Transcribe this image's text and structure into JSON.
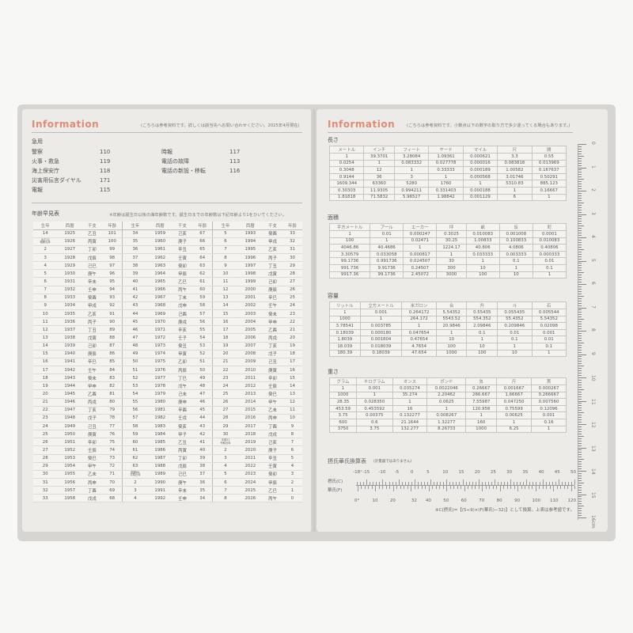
{
  "left": {
    "title": "Information",
    "note": "(こちらは参考資料です。詳しくは該当先へお問い合わせください。2025年4月現在)",
    "emergency": {
      "heading": "急用",
      "col1": [
        [
          "警察",
          "110"
        ],
        [
          "火事・救急",
          "119"
        ],
        [
          "海上保安庁",
          "118"
        ],
        [
          "災害用伝言ダイヤル",
          "171"
        ],
        [
          "電報",
          "115"
        ]
      ],
      "col2": [
        [
          "時報",
          "117"
        ],
        [
          "電話の故障",
          "113"
        ],
        [
          "電話の新設・移転",
          "116"
        ]
      ]
    },
    "age_table": {
      "heading": "年齢早見表",
      "note": "※年齢は誕生日以後の満年齢数です。誕生日までの年齢数は下記年齢より1をひいてください。",
      "headers": [
        "生年",
        "西暦",
        "干支",
        "年齢"
      ],
      "groups": [
        [
          [
            "14",
            "1925",
            "乙丑",
            "101"
          ],
          [
            "大正15/昭和元年",
            "1926",
            "丙寅",
            "100"
          ],
          [
            "2",
            "1927",
            "丁卯",
            "99"
          ],
          [
            "3",
            "1928",
            "戊辰",
            "98"
          ],
          [
            "4",
            "1929",
            "己巳",
            "97"
          ],
          [
            "5",
            "1930",
            "庚午",
            "96"
          ],
          [
            "6",
            "1931",
            "辛未",
            "95"
          ],
          [
            "7",
            "1932",
            "壬申",
            "94"
          ],
          [
            "8",
            "1933",
            "癸酉",
            "93"
          ],
          [
            "9",
            "1934",
            "甲戌",
            "92"
          ],
          [
            "10",
            "1935",
            "乙亥",
            "91"
          ],
          [
            "11",
            "1936",
            "丙子",
            "90"
          ],
          [
            "12",
            "1937",
            "丁丑",
            "89"
          ],
          [
            "13",
            "1938",
            "戊寅",
            "88"
          ],
          [
            "14",
            "1939",
            "己卯",
            "87"
          ],
          [
            "15",
            "1940",
            "庚辰",
            "86"
          ],
          [
            "16",
            "1941",
            "辛巳",
            "85"
          ],
          [
            "17",
            "1942",
            "壬午",
            "84"
          ],
          [
            "18",
            "1943",
            "癸未",
            "83"
          ],
          [
            "19",
            "1944",
            "甲申",
            "82"
          ],
          [
            "20",
            "1945",
            "乙酉",
            "81"
          ],
          [
            "21",
            "1946",
            "丙戌",
            "80"
          ],
          [
            "22",
            "1947",
            "丁亥",
            "79"
          ],
          [
            "23",
            "1948",
            "戊子",
            "78"
          ],
          [
            "24",
            "1949",
            "己丑",
            "77"
          ],
          [
            "25",
            "1950",
            "庚寅",
            "76"
          ],
          [
            "26",
            "1951",
            "辛卯",
            "75"
          ],
          [
            "27",
            "1952",
            "壬辰",
            "74"
          ],
          [
            "28",
            "1953",
            "癸巳",
            "73"
          ],
          [
            "29",
            "1954",
            "甲午",
            "72"
          ],
          [
            "30",
            "1955",
            "乙未",
            "71"
          ],
          [
            "31",
            "1956",
            "丙申",
            "70"
          ],
          [
            "32",
            "1957",
            "丁酉",
            "69"
          ],
          [
            "33",
            "1958",
            "戊戌",
            "68"
          ]
        ],
        [
          [
            "34",
            "1959",
            "己亥",
            "67"
          ],
          [
            "35",
            "1960",
            "庚子",
            "66"
          ],
          [
            "36",
            "1961",
            "辛丑",
            "65"
          ],
          [
            "37",
            "1962",
            "壬寅",
            "64"
          ],
          [
            "38",
            "1963",
            "癸卯",
            "63"
          ],
          [
            "39",
            "1964",
            "甲辰",
            "62"
          ],
          [
            "40",
            "1965",
            "乙巳",
            "61"
          ],
          [
            "41",
            "1966",
            "丙午",
            "60"
          ],
          [
            "42",
            "1967",
            "丁未",
            "59"
          ],
          [
            "43",
            "1968",
            "戊申",
            "58"
          ],
          [
            "44",
            "1969",
            "己酉",
            "57"
          ],
          [
            "45",
            "1970",
            "庚戌",
            "56"
          ],
          [
            "46",
            "1971",
            "辛亥",
            "55"
          ],
          [
            "47",
            "1972",
            "壬子",
            "54"
          ],
          [
            "48",
            "1973",
            "癸丑",
            "53"
          ],
          [
            "49",
            "1974",
            "甲寅",
            "52"
          ],
          [
            "50",
            "1975",
            "乙卯",
            "51"
          ],
          [
            "51",
            "1976",
            "丙辰",
            "50"
          ],
          [
            "52",
            "1977",
            "丁巳",
            "49"
          ],
          [
            "53",
            "1978",
            "戊午",
            "48"
          ],
          [
            "54",
            "1979",
            "己未",
            "47"
          ],
          [
            "55",
            "1980",
            "庚申",
            "46"
          ],
          [
            "56",
            "1981",
            "辛酉",
            "45"
          ],
          [
            "57",
            "1982",
            "壬戌",
            "44"
          ],
          [
            "58",
            "1983",
            "癸亥",
            "43"
          ],
          [
            "59",
            "1984",
            "甲子",
            "42"
          ],
          [
            "60",
            "1985",
            "乙丑",
            "41"
          ],
          [
            "61",
            "1986",
            "丙寅",
            "40"
          ],
          [
            "62",
            "1987",
            "丁卯",
            "39"
          ],
          [
            "63",
            "1988",
            "戊辰",
            "38"
          ],
          [
            "昭和64/平成元年",
            "1989",
            "己巳",
            "37"
          ],
          [
            "2",
            "1990",
            "庚午",
            "36"
          ],
          [
            "3",
            "1991",
            "辛未",
            "35"
          ],
          [
            "4",
            "1992",
            "壬申",
            "34"
          ]
        ],
        [
          [
            "5",
            "1993",
            "癸酉",
            "33"
          ],
          [
            "6",
            "1994",
            "甲戌",
            "32"
          ],
          [
            "7",
            "1995",
            "乙亥",
            "31"
          ],
          [
            "8",
            "1996",
            "丙子",
            "30"
          ],
          [
            "9",
            "1997",
            "丁丑",
            "29"
          ],
          [
            "10",
            "1998",
            "戊寅",
            "28"
          ],
          [
            "11",
            "1999",
            "己卯",
            "27"
          ],
          [
            "12",
            "2000",
            "庚辰",
            "26"
          ],
          [
            "13",
            "2001",
            "辛巳",
            "25"
          ],
          [
            "14",
            "2002",
            "壬午",
            "24"
          ],
          [
            "15",
            "2003",
            "癸未",
            "23"
          ],
          [
            "16",
            "2004",
            "甲申",
            "22"
          ],
          [
            "17",
            "2005",
            "乙酉",
            "21"
          ],
          [
            "18",
            "2006",
            "丙戌",
            "20"
          ],
          [
            "19",
            "2007",
            "丁亥",
            "19"
          ],
          [
            "20",
            "2008",
            "戊子",
            "18"
          ],
          [
            "21",
            "2009",
            "己丑",
            "17"
          ],
          [
            "22",
            "2010",
            "庚寅",
            "16"
          ],
          [
            "23",
            "2011",
            "辛卯",
            "15"
          ],
          [
            "24",
            "2012",
            "壬辰",
            "14"
          ],
          [
            "25",
            "2013",
            "癸巳",
            "13"
          ],
          [
            "26",
            "2014",
            "甲午",
            "12"
          ],
          [
            "27",
            "2015",
            "乙未",
            "11"
          ],
          [
            "28",
            "2016",
            "丙申",
            "10"
          ],
          [
            "29",
            "2017",
            "丁酉",
            "9"
          ],
          [
            "30",
            "2018",
            "戊戌",
            "8"
          ],
          [
            "平成31/令和元年",
            "2019",
            "己亥",
            "7"
          ],
          [
            "2",
            "2020",
            "庚子",
            "6"
          ],
          [
            "3",
            "2021",
            "辛丑",
            "5"
          ],
          [
            "4",
            "2022",
            "壬寅",
            "4"
          ],
          [
            "5",
            "2023",
            "癸卯",
            "3"
          ],
          [
            "6",
            "2024",
            "甲辰",
            "2"
          ],
          [
            "7",
            "2025",
            "乙巳",
            "1"
          ],
          [
            "8",
            "2026",
            "丙午",
            "0"
          ]
        ]
      ]
    }
  },
  "right": {
    "title": "Information",
    "note": "(こちらは参考資料です。小数点以下の数字の取り方で多少違ってくる場合もあります。)",
    "tables": [
      {
        "heading": "長さ",
        "headers": [
          "メートル",
          "インチ",
          "フィート",
          "ヤード",
          "マイル",
          "尺",
          "間"
        ],
        "rows": [
          [
            "1",
            "39.3701",
            "3.28084",
            "1.09361",
            "0.000621",
            "3.3",
            "0.55"
          ],
          [
            "0.0254",
            "1",
            "0.083332",
            "0.027778",
            "0.000016",
            "0.083818",
            "0.013969"
          ],
          [
            "0.3048",
            "12",
            "1",
            "0.33333",
            "0.000189",
            "1.00582",
            "0.167637"
          ],
          [
            "0.9144",
            "36",
            "3",
            "1",
            "0.000568",
            "3.01746",
            "0.50291"
          ],
          [
            "1609.344",
            "63360",
            "5280",
            "1760",
            "1",
            "5310.83",
            "885.123"
          ],
          [
            "0.30303",
            "11.9305",
            "0.994211",
            "0.331403",
            "0.000188",
            "1",
            "0.16667"
          ],
          [
            "1.81818",
            "71.5832",
            "5.96527",
            "1.98842",
            "0.001129",
            "6",
            "1"
          ]
        ]
      },
      {
        "heading": "面積",
        "headers": [
          "平方メートル",
          "アール",
          "エーカー",
          "坪",
          "畝",
          "反",
          "町"
        ],
        "rows": [
          [
            "1",
            "0.01",
            "0.000247",
            "0.3025",
            "0.010083",
            "0.001008",
            "0.0001"
          ],
          [
            "100",
            "1",
            "0.02471",
            "30.25",
            "1.00833",
            "0.100833",
            "0.010083"
          ],
          [
            "4046.86",
            "40.4686",
            "1",
            "1224.17",
            "40.806",
            "4.0806",
            "0.40806"
          ],
          [
            "3.30579",
            "0.033058",
            "0.000817",
            "1",
            "0.033333",
            "0.003333",
            "0.000333"
          ],
          [
            "99.1736",
            "0.991736",
            "0.024507",
            "30",
            "1",
            "0.1",
            "0.01"
          ],
          [
            "991.736",
            "9.91736",
            "0.24507",
            "300",
            "10",
            "1",
            "0.1"
          ],
          [
            "9917.36",
            "99.1736",
            "2.45072",
            "3000",
            "100",
            "10",
            "1"
          ]
        ]
      },
      {
        "heading": "容量",
        "headers": [
          "リットル",
          "立方メートル",
          "米ガロン",
          "合",
          "升",
          "斗",
          "石"
        ],
        "rows": [
          [
            "1",
            "0.001",
            "0.264172",
            "5.54352",
            "0.55435",
            "0.055435",
            "0.005544"
          ],
          [
            "1000",
            "1",
            "264.172",
            "5543.52",
            "554.352",
            "55.4352",
            "5.54352"
          ],
          [
            "3.78541",
            "0.003785",
            "1",
            "20.9846",
            "2.09846",
            "0.209846",
            "0.02098"
          ],
          [
            "0.18039",
            "0.000180",
            "0.047654",
            "1",
            "0.1",
            "0.01",
            "0.001"
          ],
          [
            "1.8039",
            "0.001804",
            "0.47654",
            "10",
            "1",
            "0.1",
            "0.01"
          ],
          [
            "18.039",
            "0.018039",
            "4.7654",
            "100",
            "10",
            "1",
            "0.1"
          ],
          [
            "180.39",
            "0.18039",
            "47.654",
            "1000",
            "100",
            "10",
            "1"
          ]
        ]
      },
      {
        "heading": "重さ",
        "headers": [
          "グラム",
          "キログラム",
          "オンス",
          "ポンド",
          "匁",
          "斤",
          "貫"
        ],
        "rows": [
          [
            "1",
            "0.001",
            "0.035274",
            "0.0022046",
            "0.26667",
            "0.001667",
            "0.000267"
          ],
          [
            "1000",
            "1",
            "35.274",
            "2.20462",
            "266.667",
            "1.66667",
            "0.266667"
          ],
          [
            "28.35",
            "0.028350",
            "1",
            "0.0625",
            "7.55987",
            "0.047250",
            "0.007560"
          ],
          [
            "453.59",
            "0.453592",
            "16",
            "1",
            "120.958",
            "0.75599",
            "0.12096"
          ],
          [
            "3.75",
            "0.00375",
            "0.132277",
            "0.008267",
            "1",
            "0.00625",
            "0.001"
          ],
          [
            "600",
            "0.6",
            "21.1644",
            "1.32277",
            "160",
            "1",
            "0.16"
          ],
          [
            "3750",
            "3.75",
            "132.277",
            "8.26733",
            "1000",
            "6.25",
            "1"
          ]
        ]
      }
    ],
    "temperature": {
      "heading": "摂氏華氏換算表",
      "subheading": "(計量器ではありません)",
      "celsius_label": "摂氏(C)",
      "fahrenheit_label": "華氏(F)",
      "celsius_ticks": [
        "-18°",
        "-15",
        "-10",
        "-5",
        "0",
        "5",
        "10",
        "15",
        "20",
        "25",
        "30",
        "35",
        "40",
        "45",
        "50"
      ],
      "fahrenheit_ticks": [
        "0°",
        "10",
        "20",
        "32",
        "40",
        "50",
        "60",
        "70",
        "80",
        "90",
        "100",
        "110",
        "120"
      ],
      "formula": "※C(摂氏)=【(5÷9)×(F(華氏)−32)】として換算。上表は参考値です。"
    },
    "ruler": {
      "labels": [
        "0",
        "1",
        "2",
        "3",
        "4",
        "5",
        "6",
        "7",
        "8",
        "9",
        "10",
        "11",
        "12",
        "13",
        "14",
        "15",
        "16cm"
      ]
    }
  },
  "colors": {
    "accent": "#e08a78",
    "page": "#ecebe8"
  }
}
